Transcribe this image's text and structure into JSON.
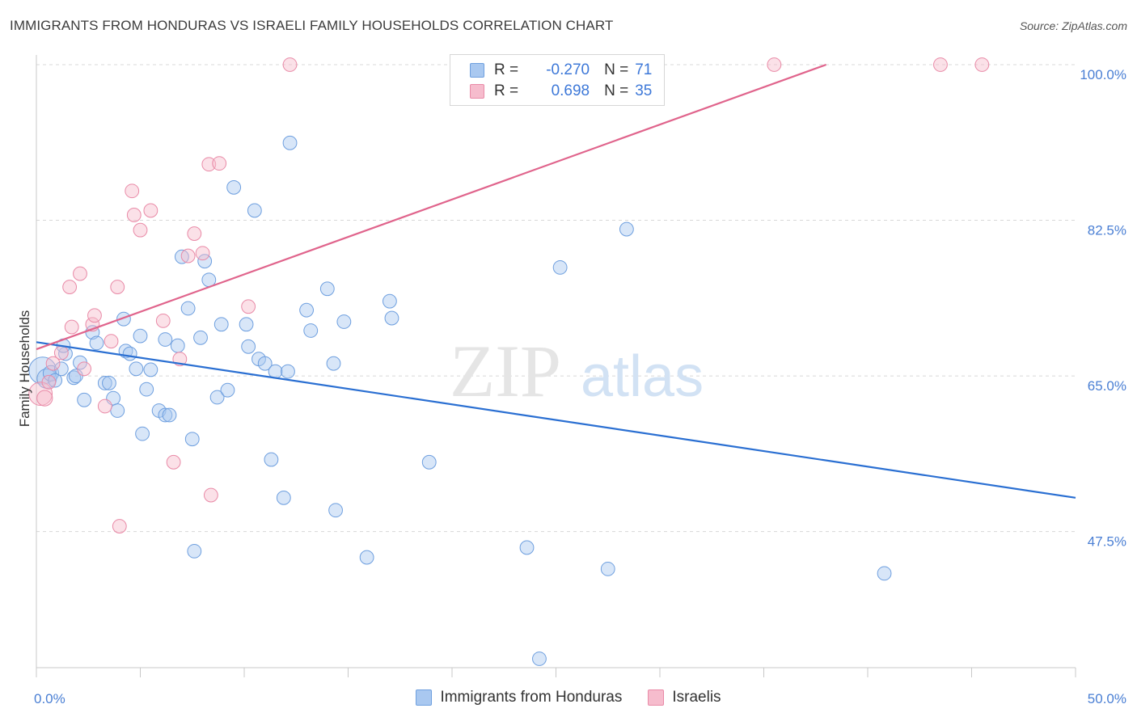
{
  "title": "IMMIGRANTS FROM HONDURAS VS ISRAELI FAMILY HOUSEHOLDS CORRELATION CHART",
  "source": "Source: ZipAtlas.com",
  "watermark": {
    "zip": "ZIP",
    "atlas": "atlas"
  },
  "colors": {
    "blue_fill": "#a9c8f0",
    "blue_stroke": "#6e9fdf",
    "blue_line": "#2a6fd2",
    "pink_fill": "#f6bccd",
    "pink_stroke": "#e98aa7",
    "pink_line": "#e0648c",
    "grid": "#d8d8d8",
    "tick_text": "#4a7fd4"
  },
  "legend": {
    "rows": [
      {
        "r_label": "R =",
        "r_value": "-0.270",
        "n_label": "N =",
        "n_value": "71",
        "series": "blue"
      },
      {
        "r_label": "R =",
        "r_value": "0.698",
        "n_label": "N =",
        "n_value": "35",
        "series": "pink"
      }
    ]
  },
  "bottom_legend": [
    "Immigrants from Honduras",
    "Israelis"
  ],
  "chart_data": {
    "type": "scatter",
    "xlabel": "",
    "ylabel": "Family Households",
    "xlim": [
      0,
      50
    ],
    "ylim": [
      32.2,
      100
    ],
    "x_tick_labels": [
      {
        "value": 0,
        "label": "0.0%"
      },
      {
        "value": 50,
        "label": "50.0%"
      }
    ],
    "x_minor_ticks": [
      0,
      5,
      10,
      15,
      20,
      25,
      30,
      35,
      40,
      45,
      50
    ],
    "y_ticks": [
      {
        "value": 47.5,
        "label": "47.5%"
      },
      {
        "value": 65.0,
        "label": "65.0%"
      },
      {
        "value": 82.5,
        "label": "82.5%"
      },
      {
        "value": 100.0,
        "label": "100.0%"
      }
    ],
    "series": [
      {
        "name": "Immigrants from Honduras",
        "color": "blue",
        "trend": {
          "x": [
            0,
            50
          ],
          "y": [
            68.8,
            51.3
          ]
        },
        "points": [
          [
            0.3,
            65.6,
            14
          ],
          [
            0.5,
            64.7,
            10
          ],
          [
            0.7,
            65.3,
            8
          ],
          [
            0.9,
            64.5,
            7
          ],
          [
            1.2,
            65.8,
            7
          ],
          [
            1.4,
            67.5,
            7
          ],
          [
            1.3,
            68.4,
            7
          ],
          [
            1.8,
            64.8,
            7
          ],
          [
            1.9,
            65.0,
            7
          ],
          [
            2.1,
            66.5,
            7
          ],
          [
            2.3,
            62.3,
            7
          ],
          [
            2.7,
            69.9,
            7
          ],
          [
            2.9,
            68.7,
            7
          ],
          [
            3.3,
            64.2,
            7
          ],
          [
            3.5,
            64.2,
            7
          ],
          [
            3.7,
            62.5,
            7
          ],
          [
            3.9,
            61.1,
            7
          ],
          [
            4.2,
            71.4,
            7
          ],
          [
            4.3,
            67.8,
            7
          ],
          [
            4.5,
            67.5,
            7
          ],
          [
            4.8,
            65.8,
            7
          ],
          [
            5.0,
            69.5,
            7
          ],
          [
            5.1,
            58.5,
            7
          ],
          [
            5.3,
            63.5,
            7
          ],
          [
            5.5,
            65.7,
            7
          ],
          [
            5.9,
            61.1,
            7
          ],
          [
            6.2,
            69.1,
            7
          ],
          [
            6.2,
            60.6,
            7
          ],
          [
            6.4,
            60.6,
            7
          ],
          [
            6.8,
            68.4,
            7
          ],
          [
            7.0,
            78.4,
            7
          ],
          [
            7.3,
            72.6,
            7
          ],
          [
            7.5,
            57.9,
            7
          ],
          [
            7.6,
            45.3,
            7
          ],
          [
            7.9,
            69.3,
            7
          ],
          [
            8.1,
            77.9,
            7
          ],
          [
            8.3,
            75.8,
            7
          ],
          [
            8.9,
            70.8,
            7
          ],
          [
            8.7,
            62.6,
            7
          ],
          [
            9.2,
            63.4,
            7
          ],
          [
            9.5,
            86.2,
            7
          ],
          [
            10.1,
            70.8,
            7
          ],
          [
            10.2,
            68.3,
            7
          ],
          [
            10.5,
            83.6,
            7
          ],
          [
            10.7,
            66.9,
            7
          ],
          [
            11.0,
            66.4,
            7
          ],
          [
            11.3,
            55.6,
            7
          ],
          [
            11.5,
            65.5,
            7
          ],
          [
            11.9,
            51.3,
            7
          ],
          [
            12.1,
            65.5,
            7
          ],
          [
            12.2,
            91.2,
            7
          ],
          [
            13.0,
            72.4,
            7
          ],
          [
            13.2,
            70.1,
            7
          ],
          [
            14.0,
            74.8,
            7
          ],
          [
            14.3,
            66.4,
            7
          ],
          [
            14.4,
            49.9,
            7
          ],
          [
            14.8,
            71.1,
            7
          ],
          [
            15.9,
            44.6,
            7
          ],
          [
            17.0,
            73.4,
            7
          ],
          [
            17.1,
            71.5,
            7
          ],
          [
            18.9,
            55.3,
            7
          ],
          [
            23.6,
            45.7,
            7
          ],
          [
            24.2,
            33.2,
            7
          ],
          [
            25.2,
            77.2,
            7
          ],
          [
            27.5,
            43.3,
            7
          ],
          [
            28.4,
            81.5,
            7
          ],
          [
            40.8,
            42.8,
            7
          ]
        ]
      },
      {
        "name": "Israelis",
        "color": "pink",
        "trend": {
          "x": [
            0,
            38
          ],
          "y": [
            68.0,
            100.0
          ]
        },
        "points": [
          [
            0.2,
            63.0,
            12
          ],
          [
            0.4,
            62.5,
            8
          ],
          [
            0.6,
            64.3,
            7
          ],
          [
            0.8,
            66.4,
            7
          ],
          [
            1.2,
            67.6,
            7
          ],
          [
            1.6,
            75.0,
            7
          ],
          [
            1.7,
            70.5,
            7
          ],
          [
            2.1,
            76.5,
            7
          ],
          [
            2.3,
            65.8,
            7
          ],
          [
            2.7,
            70.8,
            7
          ],
          [
            2.8,
            71.8,
            7
          ],
          [
            3.3,
            61.6,
            7
          ],
          [
            3.6,
            68.9,
            7
          ],
          [
            3.9,
            75.0,
            7
          ],
          [
            4.0,
            48.1,
            7
          ],
          [
            4.6,
            85.8,
            7
          ],
          [
            4.7,
            83.1,
            7
          ],
          [
            5.0,
            81.4,
            7
          ],
          [
            5.5,
            83.6,
            7
          ],
          [
            6.1,
            71.2,
            7
          ],
          [
            6.6,
            55.3,
            7
          ],
          [
            6.9,
            66.9,
            7
          ],
          [
            7.3,
            78.5,
            7
          ],
          [
            7.6,
            81.0,
            7
          ],
          [
            8.0,
            78.8,
            7
          ],
          [
            8.3,
            88.8,
            7
          ],
          [
            8.8,
            88.9,
            7
          ],
          [
            8.4,
            51.6,
            7
          ],
          [
            10.2,
            72.8,
            7
          ],
          [
            12.2,
            100.0,
            7
          ],
          [
            35.5,
            100.0,
            7
          ],
          [
            43.5,
            100.0,
            7
          ],
          [
            45.5,
            100.0,
            7
          ]
        ]
      }
    ]
  }
}
